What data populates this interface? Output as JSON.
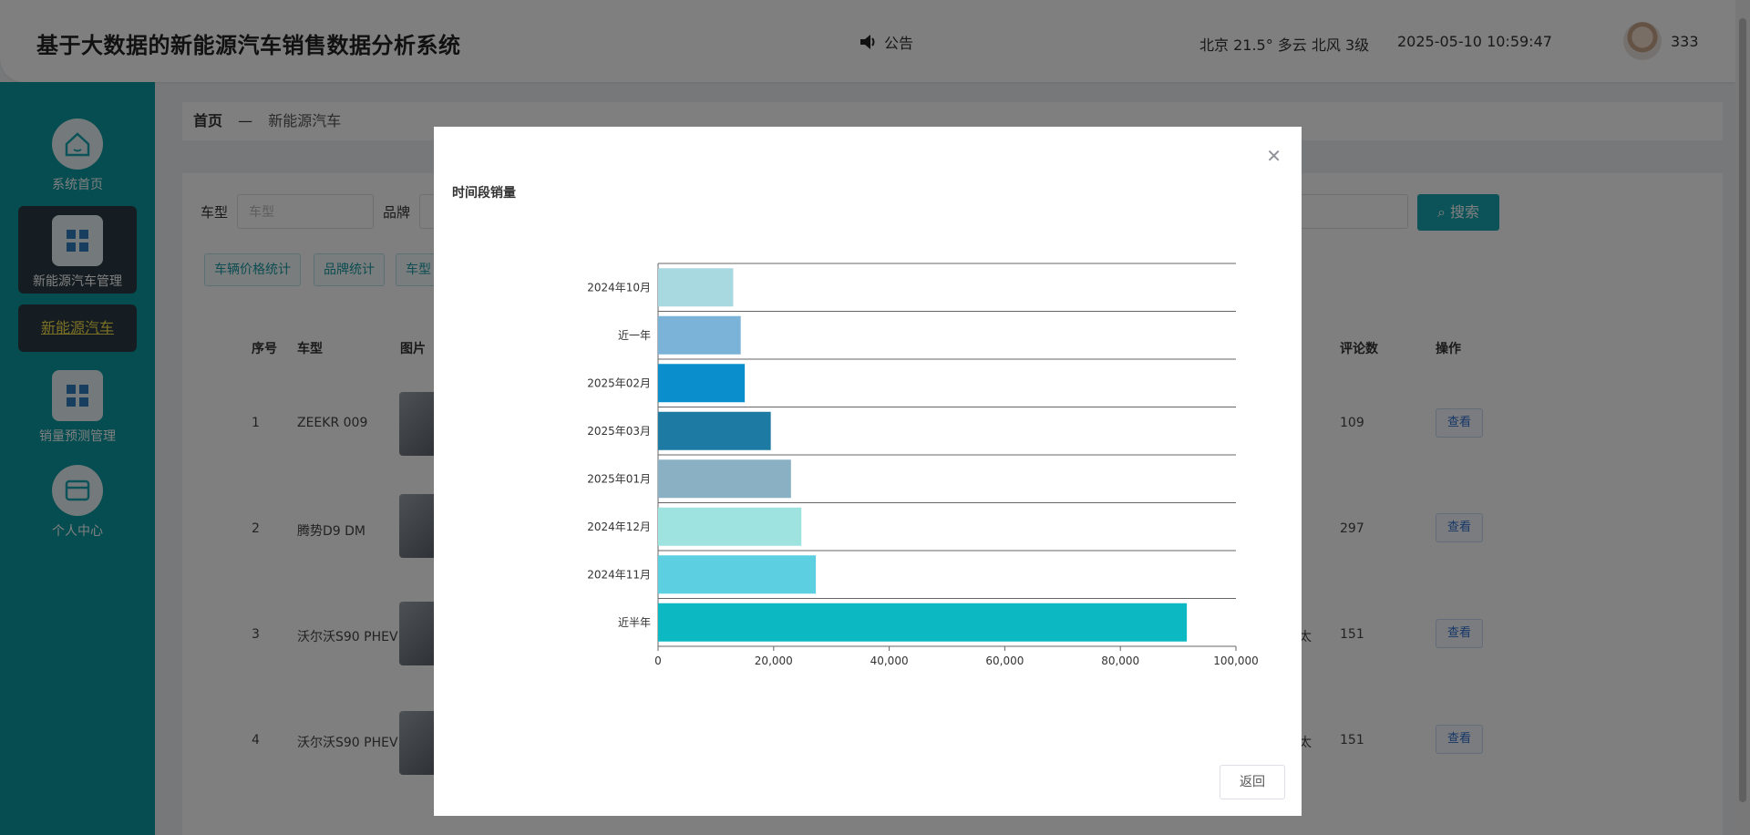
{
  "header": {
    "title": "基于大数据的新能源汽车销售数据分析系统",
    "notice": "公告",
    "weather": "北京 21.5° 多云 北风 3级",
    "datetime": "2025-05-10 10:59:47",
    "username": "333"
  },
  "sidebar": {
    "items": [
      {
        "label": "系统首页",
        "icon": "home-icon"
      },
      {
        "label": "新能源汽车管理",
        "icon": "grid-icon"
      },
      {
        "label": "销量预测管理",
        "icon": "grid-icon"
      },
      {
        "label": "个人中心",
        "icon": "wallet-icon"
      }
    ],
    "sub_active": "新能源汽车"
  },
  "breadcrumb": {
    "home": "首页",
    "sep": "—",
    "current": "新能源汽车"
  },
  "filters": {
    "car_model_label": "车型",
    "car_model_placeholder": "车型",
    "brand_label": "品牌",
    "search_label": "搜索"
  },
  "tags": [
    "车辆价格统计",
    "品牌统计",
    "车型"
  ],
  "table": {
    "headers": {
      "index": "序号",
      "model": "车型",
      "image": "图片",
      "comments": "评论数",
      "ops": "操作"
    },
    "rows": [
      {
        "index": "1",
        "model": "ZEEKR 009",
        "extra": "",
        "comments": "109",
        "action": "查看"
      },
      {
        "index": "2",
        "model": "腾势D9 DM",
        "extra": "",
        "comments": "297",
        "action": "查看"
      },
      {
        "index": "3",
        "model": "沃尔沃S90 PHEV",
        "extra": "太",
        "comments": "151",
        "action": "查看"
      },
      {
        "index": "4",
        "model": "沃尔沃S90 PHEV",
        "extra": "太",
        "comments": "151",
        "action": "查看"
      }
    ]
  },
  "modal": {
    "back_label": "返回"
  },
  "chart_data": {
    "type": "bar",
    "orientation": "horizontal",
    "title": "时间段销量",
    "categories": [
      "2024年10月",
      "近一年",
      "2025年02月",
      "2025年03月",
      "2025年01月",
      "2024年12月",
      "2024年11月",
      "近半年"
    ],
    "values": [
      13000,
      14300,
      15000,
      19500,
      23000,
      24800,
      27300,
      91500
    ],
    "colors": [
      "#a8d8e0",
      "#7bb2d8",
      "#0a8fcc",
      "#1d7aa3",
      "#8ab1c3",
      "#9ee3e0",
      "#5ccfe0",
      "#0cb8c2"
    ],
    "xlim": [
      0,
      100000
    ],
    "xticks": [
      "0",
      "20,000",
      "40,000",
      "60,000",
      "80,000",
      "100,000"
    ],
    "grid": true
  }
}
